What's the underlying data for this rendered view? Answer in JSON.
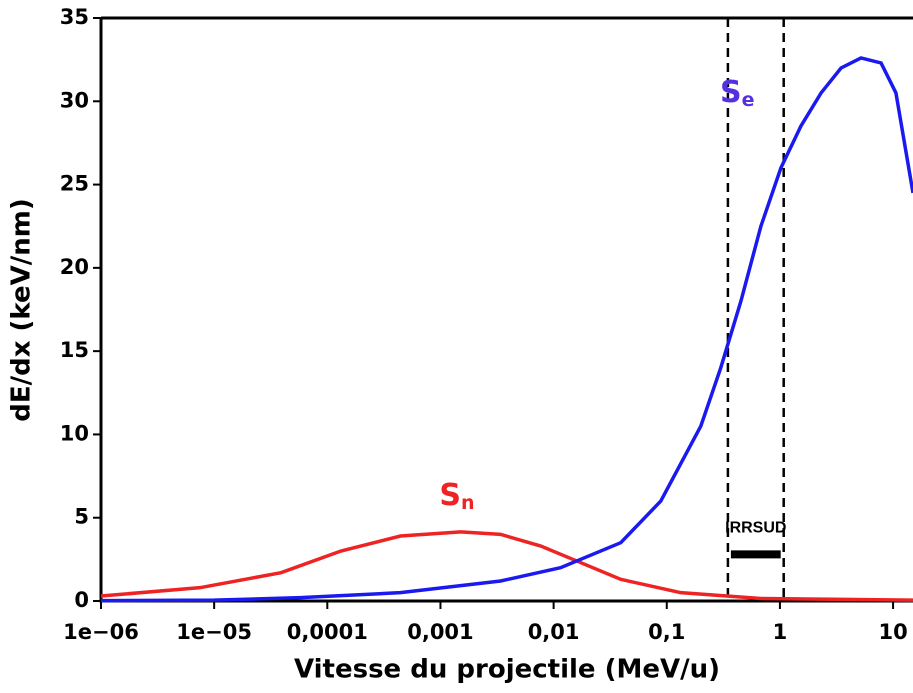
{
  "chart_data": {
    "type": "line",
    "x_label": "Vitesse du projectile (MeV/u)",
    "y_label": "dE/dx (keV/nm)",
    "xscale": "log",
    "xlim": [
      1e-06,
      15
    ],
    "ylim": [
      0,
      35
    ],
    "xticks": [
      {
        "value": 1e-06,
        "label": "1e−06"
      },
      {
        "value": 1e-05,
        "label": "1e−05"
      },
      {
        "value": 0.0001,
        "label": "0,0001"
      },
      {
        "value": 0.001,
        "label": "0,001"
      },
      {
        "value": 0.01,
        "label": "0,01"
      },
      {
        "value": 0.1,
        "label": "0,1"
      },
      1,
      10
    ],
    "yticks": [
      0,
      5,
      10,
      15,
      20,
      25,
      30,
      35
    ],
    "series": [
      {
        "name": "Sn",
        "color": "#ee2424",
        "x": [
          1e-06,
          7.5e-06,
          3.9e-05,
          0.000132,
          0.000443,
          0.00151,
          0.0034,
          0.0077,
          0.0174,
          0.0392,
          0.133,
          0.68,
          15
        ],
        "values": [
          0.3,
          0.8,
          1.7,
          3,
          3.9,
          4.15,
          4,
          3.3,
          2.3,
          1.3,
          0.5,
          0.15,
          0.05
        ]
      },
      {
        "name": "Se",
        "color": "#1a1aee",
        "x": [
          1e-06,
          1e-05,
          5.77e-05,
          0.000443,
          0.0034,
          0.0115,
          0.0392,
          0.0885,
          0.2,
          0.3,
          0.452,
          0.679,
          1.02,
          1.53,
          2.31,
          3.47,
          5.21,
          7.83,
          10.6,
          15
        ],
        "values": [
          0.02,
          0.05,
          0.2,
          0.5,
          1.2,
          2,
          3.5,
          6,
          10.5,
          14,
          18,
          22.5,
          26,
          28.5,
          30.5,
          32,
          32.6,
          32.3,
          30.5,
          24.5
        ]
      }
    ],
    "annotations": [
      {
        "text": "S",
        "sub": "n",
        "x": 0.0014,
        "y": 6.3,
        "color": "#ee2424"
      },
      {
        "text": "S",
        "sub": "e",
        "x": 0.42,
        "y": 30.5,
        "color": "#5530e0"
      }
    ],
    "region": {
      "label": "IRRSUD",
      "x": [
        0.347,
        1.08
      ],
      "y": 2.8
    }
  }
}
